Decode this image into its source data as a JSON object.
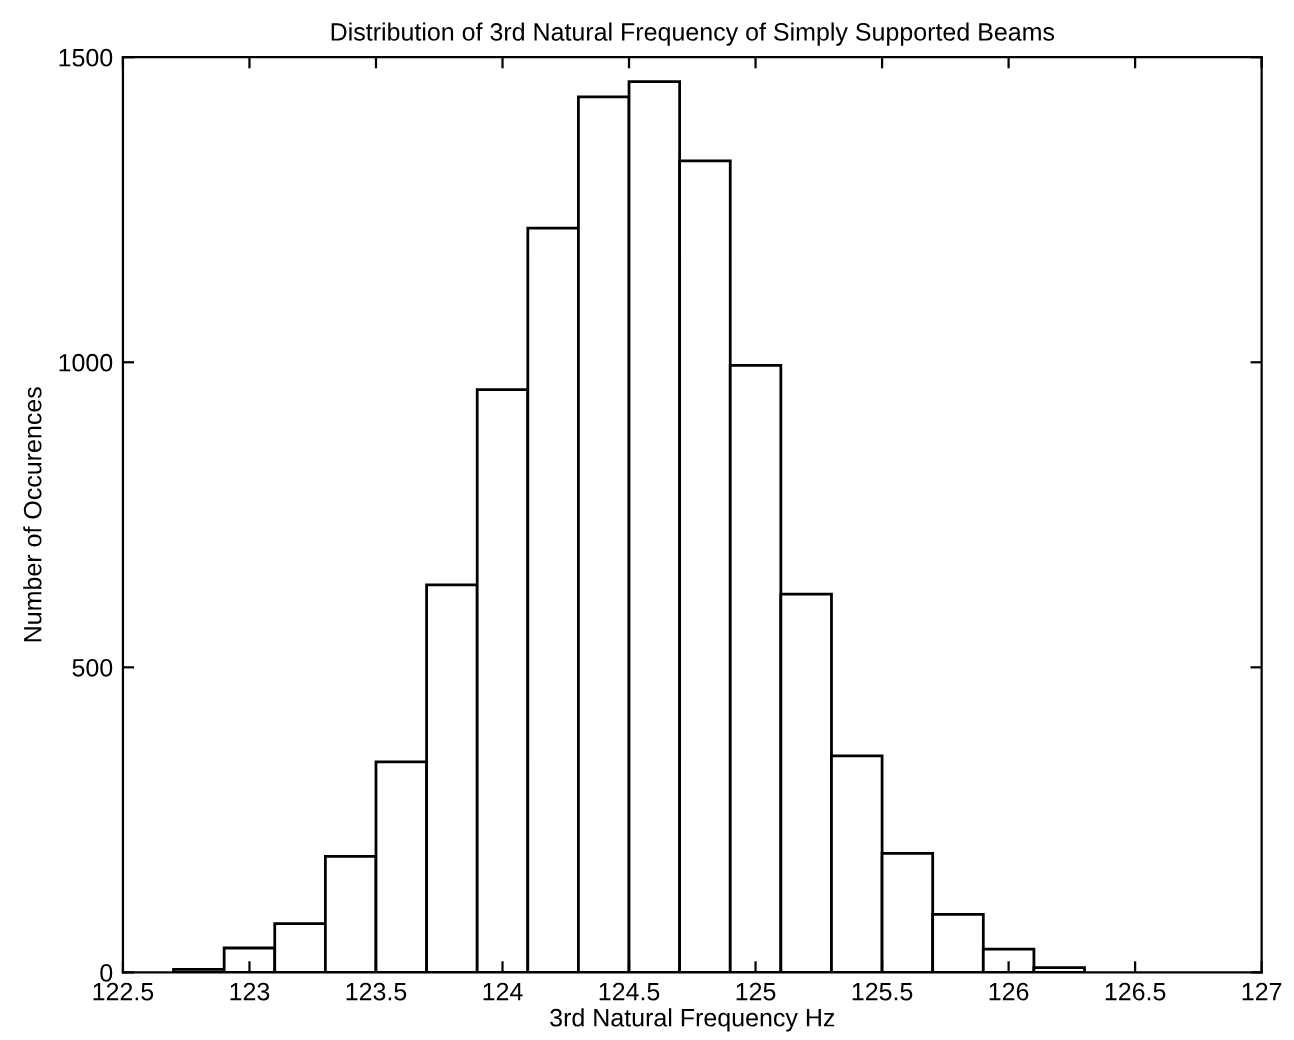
{
  "chart_data": {
    "type": "histogram",
    "title": "Distribution of 3rd Natural Frequency of Simply Supported Beams",
    "xlabel": "3rd Natural Frequency Hz",
    "ylabel": "Number of Occurences",
    "bins": [
      122.5,
      122.7,
      122.9,
      123.1,
      123.3,
      123.5,
      123.7,
      123.9,
      124.1,
      124.3,
      124.5,
      124.7,
      124.9,
      125.1,
      125.3,
      125.5,
      125.7,
      125.9,
      126.1,
      126.3,
      126.5,
      126.7
    ],
    "values": [
      null,
      5,
      40,
      80,
      190,
      345,
      635,
      955,
      1220,
      1435,
      1460,
      1330,
      995,
      620,
      355,
      195,
      95,
      38,
      8,
      null,
      null
    ],
    "color": "#ffffff",
    "xlim": [
      122.5,
      127
    ],
    "xticks": [
      122.5,
      123,
      123.5,
      124,
      124.5,
      125,
      125.5,
      126,
      126.5,
      127
    ],
    "ylim": [
      0,
      1500
    ],
    "yticks": [
      0,
      500,
      1000,
      1500
    ],
    "grid": false
  }
}
